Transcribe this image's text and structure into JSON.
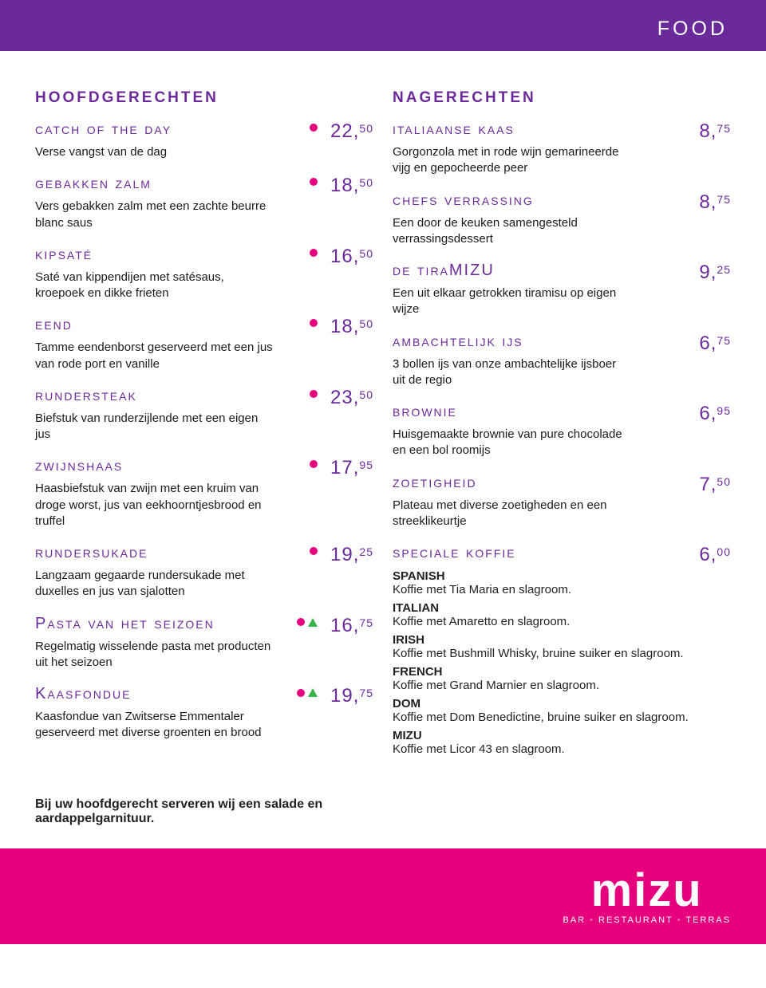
{
  "header": {
    "title": "food"
  },
  "left": {
    "heading": "hoofdgerechten",
    "items": [
      {
        "name": "catch of the day",
        "desc": "Verse vangst van de dag",
        "price_int": "22,",
        "price_dec": "50",
        "circle": true,
        "triangle": false
      },
      {
        "name": "gebakken zalm",
        "desc": "Vers gebakken zalm met een zachte beurre blanc saus",
        "price_int": "18,",
        "price_dec": "50",
        "circle": true,
        "triangle": false
      },
      {
        "name": "kipsaté",
        "desc": "Saté van kippendijen met satésaus, kroepoek en dikke frieten",
        "price_int": "16,",
        "price_dec": "50",
        "circle": true,
        "triangle": false
      },
      {
        "name": "eend",
        "desc": "Tamme eendenborst geserveerd met een jus van rode port en vanille",
        "price_int": "18,",
        "price_dec": "50",
        "circle": true,
        "triangle": false
      },
      {
        "name": "rundersteak",
        "desc": "Biefstuk van runderzijlende met een eigen jus",
        "price_int": "23,",
        "price_dec": "50",
        "circle": true,
        "triangle": false
      },
      {
        "name": "zwijnshaas",
        "desc": "Haasbiefstuk van zwijn met een kruim van droge worst,  jus van eekhoorntjesbrood en truffel",
        "price_int": "17,",
        "price_dec": "95",
        "circle": true,
        "triangle": false
      },
      {
        "name": "rundersukade",
        "desc": "Langzaam gegaarde rundersukade met duxelles en jus van sjalotten",
        "price_int": "19,",
        "price_dec": "25",
        "circle": true,
        "triangle": false
      },
      {
        "name": "Pasta van het seizoen",
        "desc": "Regelmatig wisselende pasta met producten uit het seizoen",
        "price_int": "16,",
        "price_dec": "75",
        "circle": true,
        "triangle": true
      },
      {
        "name": "Kaasfondue",
        "desc": "Kaasfondue van Zwitserse Emmentaler geserveerd met diverse groenten en brood",
        "price_int": "19,",
        "price_dec": "75",
        "circle": true,
        "triangle": true
      }
    ]
  },
  "right": {
    "heading": "nagerechten",
    "items": [
      {
        "name": "italiaanse kaas",
        "desc": "Gorgonzola met in rode wijn gemarineerde vijg en gepocheerde peer",
        "price_int": "8,",
        "price_dec": "75"
      },
      {
        "name": "chefs verrassing",
        "desc": "Een door de keuken samengesteld verrassingsdessert",
        "price_int": "8,",
        "price_dec": "75"
      },
      {
        "name": "de tiraMIZU",
        "desc": "Een uit elkaar getrokken tiramisu op eigen wijze",
        "price_int": "9,",
        "price_dec": "25"
      },
      {
        "name": "ambachtelijk ijs",
        "desc": "3 bollen ijs van onze ambachtelijke ijsboer uit de regio",
        "price_int": "6,",
        "price_dec": "75"
      },
      {
        "name": "brownie",
        "desc": "Huisgemaakte brownie van pure chocolade en een bol roomijs",
        "price_int": "6,",
        "price_dec": "95"
      },
      {
        "name": "zoetigheid",
        "desc": "Plateau met diverse zoetigheden en een streeklikeurtje",
        "price_int": "7,",
        "price_dec": "50"
      }
    ],
    "coffee": {
      "name": "speciale koffie",
      "price_int": "6,",
      "price_dec": "00",
      "variants": [
        {
          "name": "SPANISH",
          "desc": "Koffie met Tia Maria en slagroom."
        },
        {
          "name": "ITALIAN",
          "desc": "Koffie met Amaretto en slagroom."
        },
        {
          "name": "IRISH",
          "desc": "Koffie met Bushmill Whisky, bruine suiker en slagroom."
        },
        {
          "name": "FRENCH",
          "desc": "Koffie met Grand Marnier en slagroom."
        },
        {
          "name": "DOM",
          "desc": "Koffie met Dom Benedictine, bruine suiker en slagroom."
        },
        {
          "name": "MIZU",
          "desc": "Koffie met Licor 43 en slagroom."
        }
      ]
    }
  },
  "footnote": "Bij uw hoofdgerecht serveren wij een salade en aardappelgarnituur.",
  "footer": {
    "logo": "mizu",
    "subtitle": "BAR ◦ RESTAURANT ◦ TERRAS"
  },
  "colors": {
    "purple": "#6b2a9a",
    "magenta": "#e6007e",
    "green": "#39b54a",
    "white": "#ffffff"
  }
}
